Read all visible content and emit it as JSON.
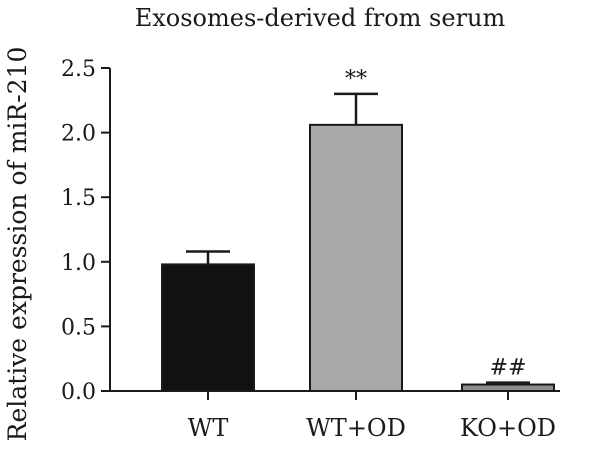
{
  "chart_data": {
    "type": "bar",
    "title": "Exosomes-derived from serum",
    "xlabel": "",
    "ylabel": "Relative expression of miR-210",
    "ylim": [
      0,
      2.5
    ],
    "yticks": [
      "0.0",
      "0.5",
      "1.0",
      "1.5",
      "2.0",
      "2.5"
    ],
    "categories": [
      "WT",
      "WT+OD",
      "KO+OD"
    ],
    "values": [
      0.98,
      2.06,
      0.05
    ],
    "errors": [
      0.1,
      0.24,
      0.015
    ],
    "annotations": [
      "",
      "**",
      "##"
    ],
    "bar_colors": [
      "#111111",
      "#a8a8a8",
      "#8c8c8c"
    ],
    "grid": false,
    "legend": "none"
  }
}
